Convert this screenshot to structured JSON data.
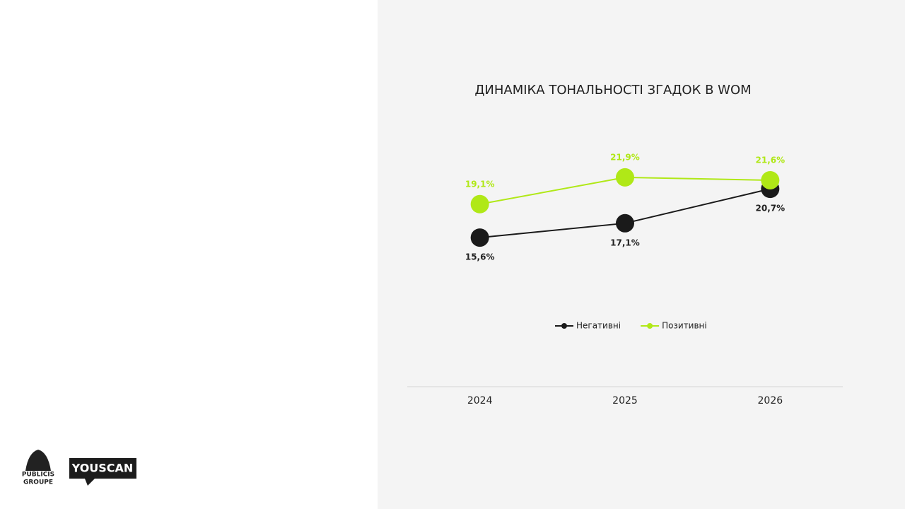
{
  "chart_data": {
    "type": "line",
    "title": "ДИНАМІКА ТОНАЛЬНОСТІ ЗГАДОК В WOM",
    "categories": [
      "2024",
      "2025",
      "2026"
    ],
    "series": [
      {
        "name": "Негативні",
        "color": "#1a1a1a",
        "values": [
          15.6,
          17.1,
          20.7
        ],
        "value_labels": [
          "15,6%",
          "17,1%",
          "20,7%"
        ]
      },
      {
        "name": "Позитивні",
        "color": "#b0e817",
        "values": [
          19.1,
          21.9,
          21.6
        ],
        "value_labels": [
          "19,1%",
          "21,9%",
          "21,6%"
        ]
      }
    ],
    "ylim": [
      0,
      25
    ],
    "legend": "bottom"
  },
  "logos": {
    "publicis": "PUBLICIS",
    "groupe": "GROUPE",
    "youscan": "YOUSCAN"
  }
}
